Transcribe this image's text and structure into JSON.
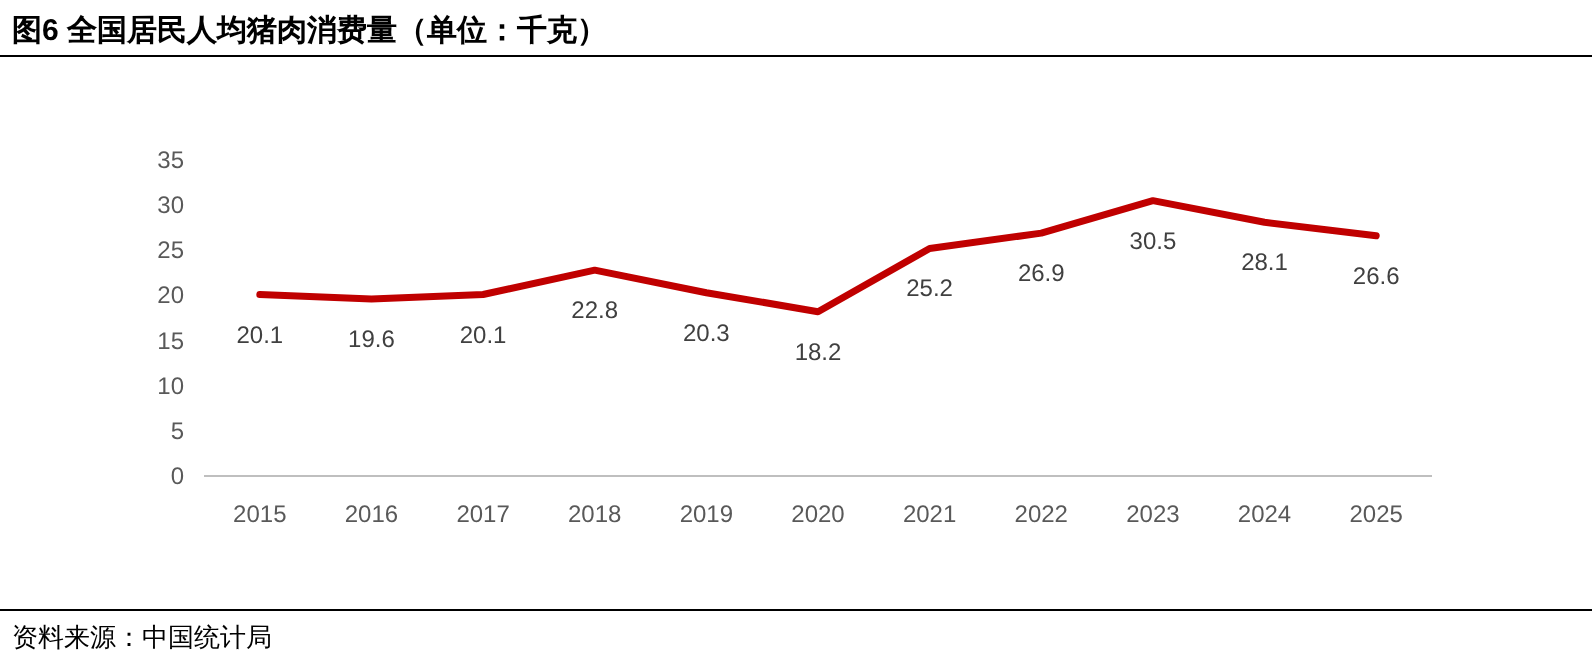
{
  "chart_data": {
    "type": "line",
    "title": "图6  全国居民人均猪肉消费量（单位：千克）",
    "categories": [
      "2015",
      "2016",
      "2017",
      "2018",
      "2019",
      "2020",
      "2021",
      "2022",
      "2023",
      "2024",
      "2025"
    ],
    "values": [
      20.1,
      19.6,
      20.1,
      22.8,
      20.3,
      18.2,
      25.2,
      26.9,
      30.5,
      28.1,
      26.6
    ],
    "color": "#c00000",
    "ylim": [
      0,
      35
    ],
    "yticks": [
      0,
      5,
      10,
      15,
      20,
      25,
      30,
      35
    ],
    "data_labels": true,
    "annotations": [
      "资料来源：中国统计局"
    ]
  }
}
